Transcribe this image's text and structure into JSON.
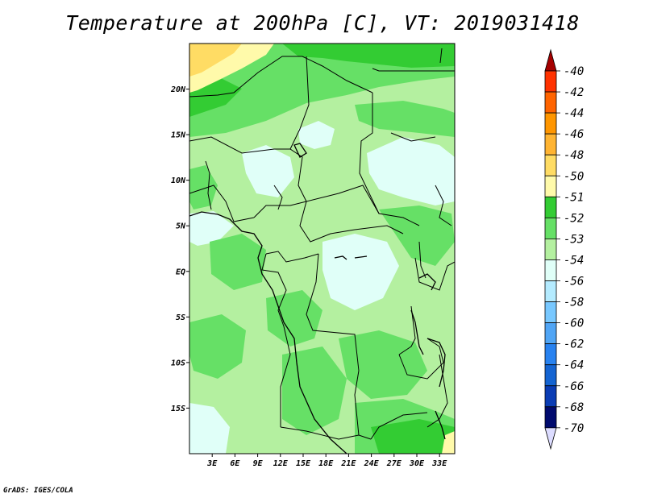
{
  "title": "Temperature at 200hPa [C], VT: 2019031418",
  "footer": "GrADS: IGES/COLA",
  "map": {
    "lat_labels": [
      "20N",
      "15N",
      "10N",
      "5N",
      "EQ",
      "5S",
      "10S",
      "15S"
    ],
    "lat_values": [
      20,
      15,
      10,
      5,
      0,
      -5,
      -10,
      -15
    ],
    "lon_labels": [
      "3E",
      "6E",
      "9E",
      "12E",
      "15E",
      "18E",
      "21E",
      "24E",
      "27E",
      "30E",
      "33E"
    ],
    "lon_values": [
      3,
      6,
      9,
      12,
      15,
      18,
      21,
      24,
      27,
      30,
      33
    ],
    "lon_range": [
      0,
      35
    ],
    "lat_range": [
      -20,
      25
    ]
  },
  "colorbar": {
    "labels": [
      "-40",
      "-42",
      "-44",
      "-46",
      "-48",
      "-50",
      "-51",
      "-52",
      "-53",
      "-54",
      "-56",
      "-58",
      "-60",
      "-62",
      "-64",
      "-66",
      "-68",
      "-70"
    ],
    "colors": [
      "#a50000",
      "#ff3200",
      "#ff6400",
      "#ff9600",
      "#ffb432",
      "#ffdc64",
      "#fffaaa",
      "#33cc33",
      "#66e066",
      "#b4f0a0",
      "#e0fff8",
      "#b4ebff",
      "#78c8ff",
      "#50a5f5",
      "#2882f0",
      "#1464d2",
      "#0a3cb4",
      "#000a6e",
      "#dcdcff"
    ]
  }
}
